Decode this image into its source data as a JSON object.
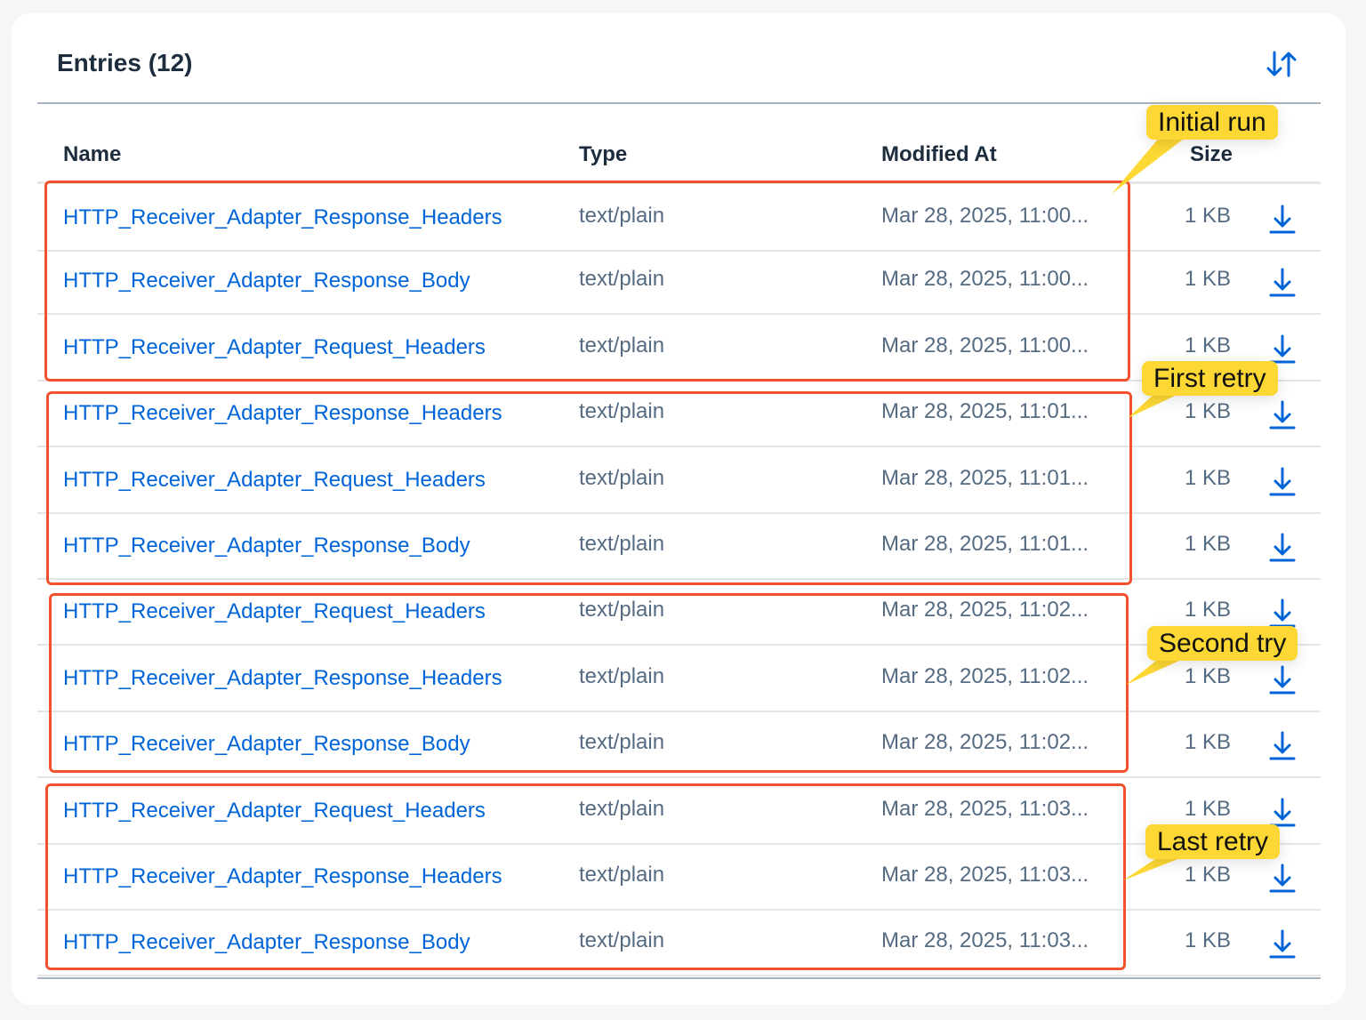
{
  "header": {
    "title": "Entries (12)",
    "sort_icon": "sort-ascending-descending-icon"
  },
  "columns": {
    "name": "Name",
    "type": "Type",
    "modified": "Modified At",
    "size": "Size"
  },
  "rows": [
    {
      "name": "HTTP_Receiver_Adapter_Response_Headers",
      "type": "text/plain",
      "modified": "Mar 28, 2025, 11:00...",
      "size": "1 KB"
    },
    {
      "name": "HTTP_Receiver_Adapter_Response_Body",
      "type": "text/plain",
      "modified": "Mar 28, 2025, 11:00...",
      "size": "1 KB"
    },
    {
      "name": "HTTP_Receiver_Adapter_Request_Headers",
      "type": "text/plain",
      "modified": "Mar 28, 2025, 11:00...",
      "size": "1 KB"
    },
    {
      "name": "HTTP_Receiver_Adapter_Response_Headers",
      "type": "text/plain",
      "modified": "Mar 28, 2025, 11:01...",
      "size": "1 KB"
    },
    {
      "name": "HTTP_Receiver_Adapter_Request_Headers",
      "type": "text/plain",
      "modified": "Mar 28, 2025, 11:01...",
      "size": "1 KB"
    },
    {
      "name": "HTTP_Receiver_Adapter_Response_Body",
      "type": "text/plain",
      "modified": "Mar 28, 2025, 11:01...",
      "size": "1 KB"
    },
    {
      "name": "HTTP_Receiver_Adapter_Request_Headers",
      "type": "text/plain",
      "modified": "Mar 28, 2025, 11:02...",
      "size": "1 KB"
    },
    {
      "name": "HTTP_Receiver_Adapter_Response_Headers",
      "type": "text/plain",
      "modified": "Mar 28, 2025, 11:02...",
      "size": "1 KB"
    },
    {
      "name": "HTTP_Receiver_Adapter_Response_Body",
      "type": "text/plain",
      "modified": "Mar 28, 2025, 11:02...",
      "size": "1 KB"
    },
    {
      "name": "HTTP_Receiver_Adapter_Request_Headers",
      "type": "text/plain",
      "modified": "Mar 28, 2025, 11:03...",
      "size": "1 KB"
    },
    {
      "name": "HTTP_Receiver_Adapter_Response_Headers",
      "type": "text/plain",
      "modified": "Mar 28, 2025, 11:03...",
      "size": "1 KB"
    },
    {
      "name": "HTTP_Receiver_Adapter_Response_Body",
      "type": "text/plain",
      "modified": "Mar 28, 2025, 11:03...",
      "size": "1 KB"
    }
  ],
  "annotations": [
    {
      "label": "Initial run"
    },
    {
      "label": "First retry"
    },
    {
      "label": "Second try"
    },
    {
      "label": "Last retry"
    }
  ],
  "colors": {
    "link": "#0064d9",
    "highlight_box": "#f2512d",
    "callout": "#fdd835"
  }
}
